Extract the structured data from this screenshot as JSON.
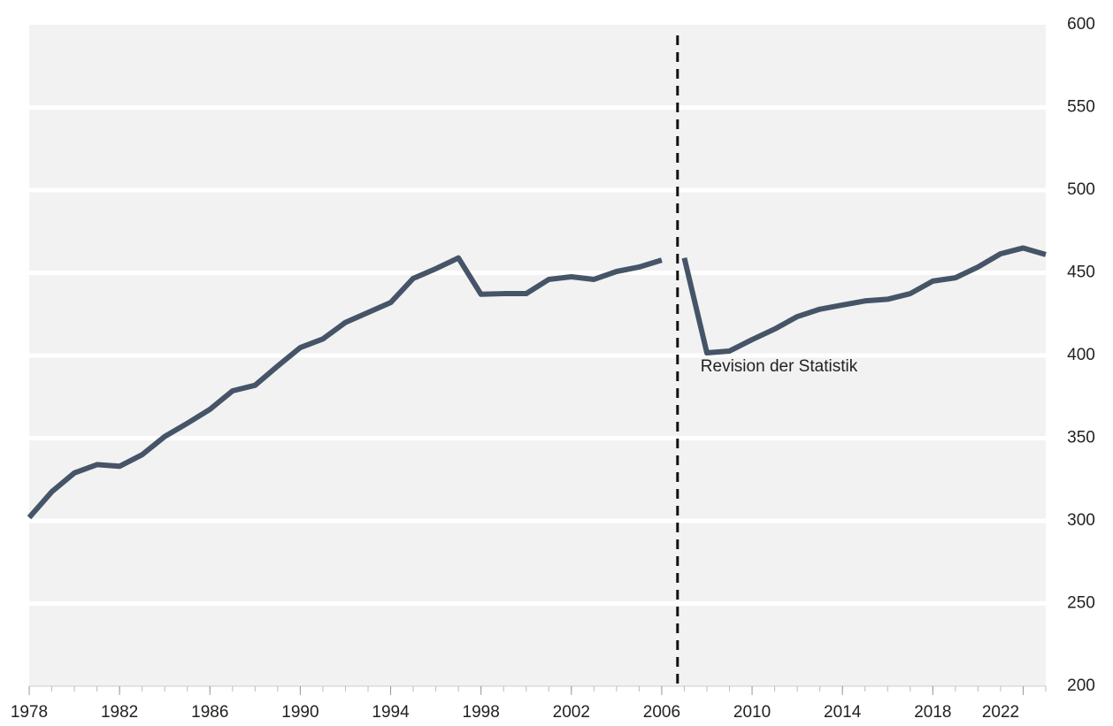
{
  "chart_data": {
    "type": "line",
    "series": [
      {
        "color": "#465468",
        "x": [
          1978,
          1979,
          1980,
          1981,
          1982,
          1983,
          1984,
          1985,
          1986,
          1987,
          1988,
          1989,
          1990,
          1991,
          1992,
          1993,
          1994,
          1995,
          1996,
          1997,
          1998,
          1999,
          2000,
          2001,
          2002,
          2003,
          2004,
          2005,
          2006
        ],
        "values": [
          302,
          317.6,
          329,
          334,
          333,
          340,
          351,
          359,
          367.4,
          378.6,
          382,
          393.6,
          404.8,
          410,
          420,
          426,
          432,
          446.6,
          452.5,
          459,
          437,
          437.4,
          437.4,
          446,
          447.6,
          446,
          450.8,
          453.5,
          457.7
        ]
      },
      {
        "color": "#465468",
        "x": [
          2007,
          2008,
          2009,
          2010,
          2011,
          2012,
          2013,
          2014,
          2015,
          2016,
          2017,
          2018,
          2019,
          2020,
          2021,
          2022,
          2023
        ],
        "values": [
          459,
          401.6,
          402.7,
          409.6,
          416,
          423.5,
          428,
          430.5,
          433,
          434,
          437.4,
          445,
          447,
          453.5,
          461.5,
          465,
          461
        ]
      }
    ],
    "xlim": [
      1978,
      2023
    ],
    "xticks": [
      1978,
      1982,
      1986,
      1990,
      1994,
      1998,
      2002,
      2006,
      2010,
      2014,
      2018,
      2022
    ],
    "ylim": [
      200,
      600
    ],
    "yticks": [
      200,
      250,
      300,
      350,
      400,
      450,
      500,
      550,
      600
    ],
    "grid": true,
    "annotation": {
      "text": "Revision der Statistik",
      "x": 2006.7
    }
  }
}
